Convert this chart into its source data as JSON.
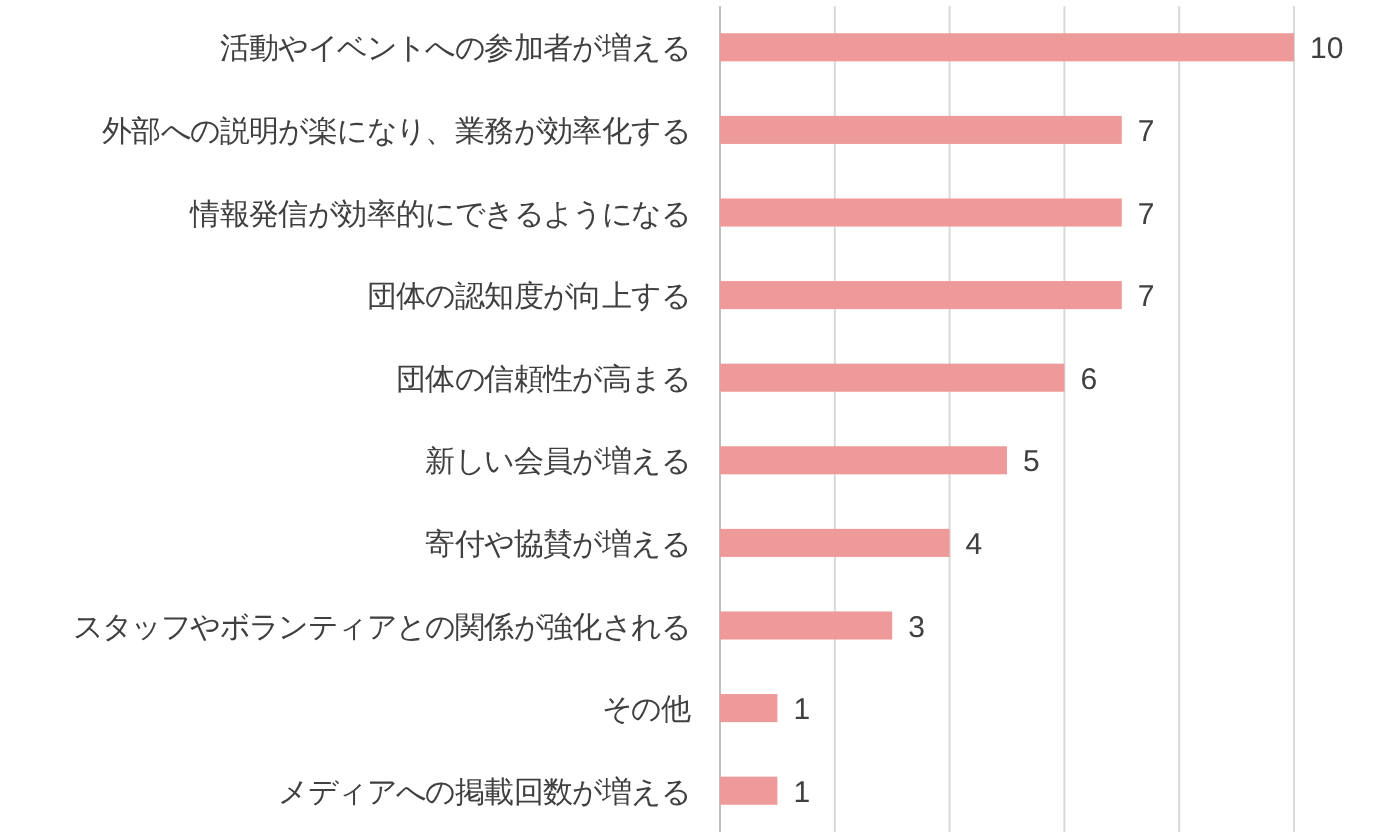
{
  "chart_data": {
    "type": "bar",
    "orientation": "horizontal",
    "categories": [
      "活動やイベントへの参加者が増える",
      "外部への説明が楽になり、業務が効率化する",
      "情報発信が効率的にできるようになる",
      "団体の認知度が向上する",
      "団体の信頼性が高まる",
      "新しい会員が増える",
      "寄付や協賛が増える",
      "スタッフやボランティアとの関係が強化される",
      "その他",
      "メディアへの掲載回数が増える"
    ],
    "values": [
      10,
      7,
      7,
      7,
      6,
      5,
      4,
      3,
      1,
      1
    ],
    "color": "#ef9a9a",
    "xlim": [
      0,
      10
    ],
    "xticks": [
      {
        "value": 0,
        "label": null
      },
      {
        "value": 2,
        "label": null
      },
      {
        "value": 4,
        "label": null
      },
      {
        "value": 6,
        "label": null
      },
      {
        "value": 8,
        "label": null
      },
      {
        "value": 10,
        "label": null
      }
    ],
    "grid": "x",
    "data_labels": true,
    "tick_labels": "y"
  }
}
